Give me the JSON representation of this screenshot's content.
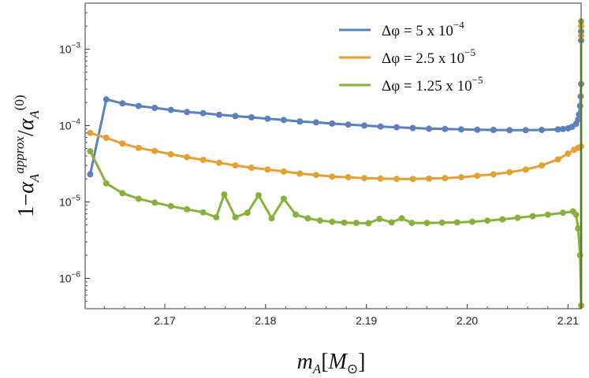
{
  "chart_data": {
    "type": "line",
    "title": "",
    "xlabel": "m_A[M_⊙]",
    "ylabel": "1−α_A^approx/α_A^(0)",
    "y_scale": "log",
    "xlim": [
      2.1621,
      2.2113
    ],
    "ylim": [
      4e-07,
      0.004
    ],
    "x_ticks": [
      2.17,
      2.18,
      2.19,
      2.2,
      2.21
    ],
    "x_tick_labels": [
      "2.17",
      "2.18",
      "2.19",
      "2.20",
      "2.21"
    ],
    "y_tick_labels": [
      {
        "value": 1e-06,
        "base": "10",
        "exp": "−6"
      },
      {
        "value": 1e-05,
        "base": "10",
        "exp": "−5"
      },
      {
        "value": 0.0001,
        "base": "10",
        "exp": "−4"
      },
      {
        "value": 0.001,
        "base": "10",
        "exp": "−3"
      }
    ],
    "grid": false,
    "legend_position": "top-right",
    "series": [
      {
        "name": "Δφ = 5 x 10^-4",
        "legend_main": "Δφ = 5 x 10",
        "legend_exp": "−4",
        "color": "#5b7fbf",
        "points": [
          [
            2.1626,
            2.3e-05
          ],
          [
            2.1642,
            0.00022
          ],
          [
            2.1658,
            0.000195
          ],
          [
            2.1674,
            0.00018
          ],
          [
            2.169,
            0.00017
          ],
          [
            2.1706,
            0.00016
          ],
          [
            2.1722,
            0.00015
          ],
          [
            2.1738,
            0.000145
          ],
          [
            2.1754,
            0.000138
          ],
          [
            2.177,
            0.000133
          ],
          [
            2.1786,
            0.000128
          ],
          [
            2.1802,
            0.000123
          ],
          [
            2.1818,
            0.000118
          ],
          [
            2.1834,
            0.000113
          ],
          [
            2.185,
            0.00011
          ],
          [
            2.1866,
            0.000106
          ],
          [
            2.1882,
            0.000103
          ],
          [
            2.1898,
            0.0001
          ],
          [
            2.1914,
            9.7e-05
          ],
          [
            2.193,
            9.5e-05
          ],
          [
            2.1946,
            9.3e-05
          ],
          [
            2.1962,
            9.1e-05
          ],
          [
            2.1978,
            9e-05
          ],
          [
            2.1994,
            8.9e-05
          ],
          [
            2.201,
            8.8e-05
          ],
          [
            2.2026,
            8.75e-05
          ],
          [
            2.2042,
            8.7e-05
          ],
          [
            2.2058,
            8.7e-05
          ],
          [
            2.2074,
            8.75e-05
          ],
          [
            2.209,
            8.9e-05
          ],
          [
            2.2095,
            9e-05
          ],
          [
            2.21,
            9.2e-05
          ],
          [
            2.2104,
            9.6e-05
          ],
          [
            2.2108,
            0.000105
          ],
          [
            2.211,
            0.00012
          ],
          [
            2.2111,
            0.00014
          ],
          [
            2.2112,
            0.00018
          ],
          [
            2.21125,
            0.00024
          ],
          [
            2.2113,
            0.00035
          ],
          [
            2.2113,
            0.0013
          ],
          [
            2.2113,
            0.0017
          ]
        ]
      },
      {
        "name": "Δφ = 2.5 x 10^-5",
        "legend_main": "Δφ = 2.5 x 10",
        "legend_exp": "−5",
        "color": "#e5a032",
        "points": [
          [
            2.1626,
            8e-05
          ],
          [
            2.1642,
            6.9e-05
          ],
          [
            2.1658,
            5.8e-05
          ],
          [
            2.1674,
            5.1e-05
          ],
          [
            2.169,
            4.65e-05
          ],
          [
            2.1706,
            4.2e-05
          ],
          [
            2.1722,
            3.85e-05
          ],
          [
            2.1738,
            3.55e-05
          ],
          [
            2.1754,
            3.25e-05
          ],
          [
            2.177,
            3e-05
          ],
          [
            2.1786,
            2.8e-05
          ],
          [
            2.1802,
            2.65e-05
          ],
          [
            2.1818,
            2.5e-05
          ],
          [
            2.1834,
            2.35e-05
          ],
          [
            2.185,
            2.25e-05
          ],
          [
            2.1866,
            2.15e-05
          ],
          [
            2.1882,
            2.1e-05
          ],
          [
            2.1898,
            2.05e-05
          ],
          [
            2.1914,
            2.02e-05
          ],
          [
            2.193,
            2e-05
          ],
          [
            2.1946,
            2e-05
          ],
          [
            2.1962,
            2.02e-05
          ],
          [
            2.1978,
            2.05e-05
          ],
          [
            2.1994,
            2.1e-05
          ],
          [
            2.201,
            2.2e-05
          ],
          [
            2.2026,
            2.3e-05
          ],
          [
            2.2042,
            2.45e-05
          ],
          [
            2.2058,
            2.65e-05
          ],
          [
            2.2074,
            3e-05
          ],
          [
            2.209,
            3.6e-05
          ],
          [
            2.21,
            4.3e-05
          ],
          [
            2.2106,
            4.8e-05
          ],
          [
            2.211,
            5.1e-05
          ],
          [
            2.2113,
            5.3e-05
          ],
          [
            2.2113,
            0.0015
          ],
          [
            2.2113,
            0.002
          ]
        ]
      },
      {
        "name": "Δφ = 1.25 x 10^-5",
        "legend_main": "Δφ = 1.25 x 10",
        "legend_exp": "−5",
        "color": "#88b13c",
        "points": [
          [
            2.1626,
            4.6e-05
          ],
          [
            2.1642,
            1.75e-05
          ],
          [
            2.1658,
            1.3e-05
          ],
          [
            2.1674,
            1.1e-05
          ],
          [
            2.169,
            9.8e-06
          ],
          [
            2.1706,
            8.8e-06
          ],
          [
            2.1722,
            8e-06
          ],
          [
            2.1738,
            7.3e-06
          ],
          [
            2.1751,
            6.3e-06
          ],
          [
            2.1759,
            1.25e-05
          ],
          [
            2.177,
            6.3e-06
          ],
          [
            2.1782,
            7.2e-06
          ],
          [
            2.1793,
            1.22e-05
          ],
          [
            2.1806,
            6.1e-06
          ],
          [
            2.1818,
            1.1e-05
          ],
          [
            2.183,
            6.8e-06
          ],
          [
            2.1842,
            6.1e-06
          ],
          [
            2.1854,
            5.7e-06
          ],
          [
            2.1866,
            5.5e-06
          ],
          [
            2.1878,
            5.35e-06
          ],
          [
            2.189,
            5.3e-06
          ],
          [
            2.1902,
            5.25e-06
          ],
          [
            2.1913,
            6e-06
          ],
          [
            2.1925,
            5.4e-06
          ],
          [
            2.1935,
            6.1e-06
          ],
          [
            2.1945,
            5.3e-06
          ],
          [
            2.196,
            5.3e-06
          ],
          [
            2.1975,
            5.35e-06
          ],
          [
            2.199,
            5.4e-06
          ],
          [
            2.2005,
            5.5e-06
          ],
          [
            2.202,
            5.7e-06
          ],
          [
            2.2035,
            5.9e-06
          ],
          [
            2.205,
            6.2e-06
          ],
          [
            2.2065,
            6.5e-06
          ],
          [
            2.208,
            6.8e-06
          ],
          [
            2.2095,
            7.2e-06
          ],
          [
            2.2105,
            7.5e-06
          ],
          [
            2.2108,
            6.8e-06
          ],
          [
            2.211,
            4.5e-06
          ],
          [
            2.2112,
            2e-06
          ],
          [
            2.2113,
            4.4e-07
          ],
          [
            2.2113,
            0.0023
          ]
        ]
      }
    ]
  }
}
